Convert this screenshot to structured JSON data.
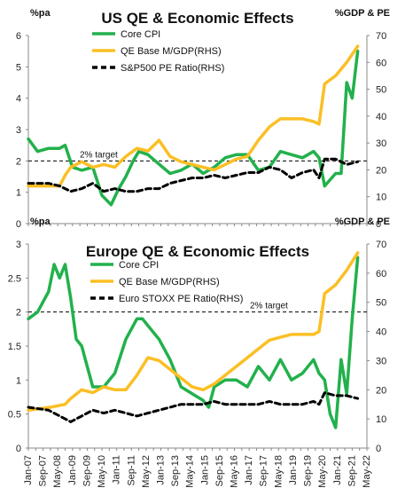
{
  "chart_data": [
    {
      "type": "line",
      "title": "US QE & Economic Effects",
      "left_unit": "%pa",
      "right_unit": "%GDP & PE",
      "x_start": "2007-01",
      "x_end": "2022-05",
      "ylim": [
        0,
        6
      ],
      "y_ticks": [
        0,
        1,
        2,
        3,
        4,
        5,
        6
      ],
      "y2lim": [
        0,
        70
      ],
      "y2_ticks": [
        0,
        10,
        20,
        30,
        40,
        50,
        60,
        70
      ],
      "grid": false,
      "legend_position": "top-center",
      "target": {
        "value": 2,
        "label": "2% target"
      },
      "series": [
        {
          "name": "Core CPI",
          "axis": "left",
          "color": "#22b14c",
          "style": "solid",
          "x": [
            "2007-01",
            "2007-06",
            "2007-12",
            "2008-06",
            "2008-09",
            "2009-01",
            "2009-06",
            "2009-12",
            "2010-05",
            "2010-10",
            "2011-02",
            "2011-06",
            "2011-10",
            "2012-01",
            "2012-06",
            "2012-12",
            "2013-06",
            "2013-12",
            "2014-06",
            "2014-12",
            "2015-06",
            "2015-12",
            "2016-06",
            "2016-12",
            "2017-06",
            "2017-12",
            "2018-06",
            "2018-12",
            "2019-06",
            "2019-12",
            "2020-03",
            "2020-06",
            "2020-12",
            "2021-03",
            "2021-06",
            "2021-09",
            "2021-12"
          ],
          "y": [
            2.7,
            2.3,
            2.4,
            2.4,
            2.5,
            1.8,
            1.7,
            1.8,
            0.9,
            0.6,
            1.1,
            1.5,
            2.0,
            2.3,
            2.2,
            1.9,
            1.6,
            1.7,
            1.9,
            1.6,
            1.8,
            2.1,
            2.2,
            2.2,
            1.7,
            1.8,
            2.3,
            2.2,
            2.1,
            2.3,
            2.1,
            1.2,
            1.6,
            1.6,
            4.5,
            4.0,
            5.5
          ]
        },
        {
          "name": "QE Base M/GDP(RHS)",
          "axis": "right",
          "color": "#fbbf25",
          "style": "solid",
          "x": [
            "2007-01",
            "2008-06",
            "2008-09",
            "2008-12",
            "2009-06",
            "2009-12",
            "2010-06",
            "2010-12",
            "2011-06",
            "2011-12",
            "2012-06",
            "2012-12",
            "2013-06",
            "2013-12",
            "2014-06",
            "2014-12",
            "2015-06",
            "2015-12",
            "2016-06",
            "2016-12",
            "2017-06",
            "2017-12",
            "2018-06",
            "2018-12",
            "2019-06",
            "2019-12",
            "2020-03",
            "2020-06",
            "2020-12",
            "2021-06",
            "2021-12"
          ],
          "y": [
            14,
            14,
            18,
            21,
            23,
            21,
            22,
            21,
            25,
            28,
            27,
            31,
            25,
            23,
            22,
            21,
            20,
            22,
            24,
            25,
            31,
            36,
            39,
            39,
            39,
            38,
            37,
            52,
            55,
            60,
            66
          ]
        },
        {
          "name": "S&P500 PE Ratio(RHS)",
          "axis": "right",
          "color": "#000000",
          "style": "dashed",
          "x": [
            "2007-01",
            "2007-12",
            "2008-06",
            "2008-12",
            "2009-06",
            "2009-12",
            "2010-06",
            "2010-12",
            "2011-06",
            "2011-12",
            "2012-06",
            "2012-12",
            "2013-06",
            "2013-12",
            "2014-06",
            "2014-12",
            "2015-06",
            "2015-12",
            "2016-06",
            "2016-12",
            "2017-06",
            "2017-12",
            "2018-06",
            "2018-12",
            "2019-06",
            "2019-12",
            "2020-03",
            "2020-06",
            "2020-12",
            "2021-06",
            "2021-12"
          ],
          "y": [
            15,
            15,
            14,
            12,
            13,
            15,
            12,
            13,
            12,
            12,
            13,
            13,
            15,
            16,
            17,
            17,
            18,
            17,
            18,
            19,
            19,
            21,
            20,
            17,
            19,
            20,
            17,
            24,
            24,
            22,
            23
          ]
        }
      ],
      "x_tick_labels": [
        "Jan-07",
        "Sep-07",
        "May-08",
        "Jan-09",
        "Sep-09",
        "May-10",
        "Jan-11",
        "Sep-11",
        "May-12",
        "Jan-13",
        "Sep-13",
        "May-14",
        "Jan-15",
        "Sep-15",
        "May-16",
        "Jan-17",
        "Sep-17",
        "May-18",
        "Jan-19",
        "Sep-19",
        "May-20",
        "Jan-21",
        "Sep-21",
        "May-22"
      ]
    },
    {
      "type": "line",
      "title": "Europe QE & Economic Effects",
      "left_unit": "%pa",
      "right_unit": "%GDP & PE",
      "x_start": "2007-01",
      "x_end": "2022-05",
      "ylim": [
        0,
        3
      ],
      "y_ticks": [
        0,
        0.5,
        1,
        1.5,
        2,
        2.5,
        3
      ],
      "y2lim": [
        0,
        70
      ],
      "y2_ticks": [
        0,
        10,
        20,
        30,
        40,
        50,
        60,
        70
      ],
      "grid": false,
      "legend_position": "top-center",
      "target": {
        "value": 2,
        "label": "2% target"
      },
      "series": [
        {
          "name": "Core CPI",
          "axis": "left",
          "color": "#22b14c",
          "style": "solid",
          "x": [
            "2007-01",
            "2007-06",
            "2007-12",
            "2008-03",
            "2008-06",
            "2008-09",
            "2008-12",
            "2009-03",
            "2009-06",
            "2009-09",
            "2009-12",
            "2010-06",
            "2010-12",
            "2011-06",
            "2011-12",
            "2012-03",
            "2012-06",
            "2012-12",
            "2013-06",
            "2013-12",
            "2014-06",
            "2014-12",
            "2015-03",
            "2015-06",
            "2015-12",
            "2016-06",
            "2016-12",
            "2017-06",
            "2017-12",
            "2018-06",
            "2018-12",
            "2019-06",
            "2019-12",
            "2020-03",
            "2020-06",
            "2020-09",
            "2020-12",
            "2021-03",
            "2021-06",
            "2021-09",
            "2021-12"
          ],
          "y": [
            1.9,
            2.0,
            2.3,
            2.7,
            2.5,
            2.7,
            2.2,
            1.6,
            1.5,
            1.2,
            0.9,
            0.9,
            1.1,
            1.6,
            1.9,
            1.9,
            1.8,
            1.6,
            1.3,
            0.9,
            0.8,
            0.7,
            0.6,
            0.9,
            1.0,
            1.0,
            0.9,
            1.2,
            1.0,
            1.3,
            1.0,
            1.1,
            1.3,
            1.1,
            1.0,
            0.5,
            0.3,
            1.3,
            0.8,
            1.9,
            2.8
          ]
        },
        {
          "name": "QE Base M/GDP(RHS)",
          "axis": "right",
          "color": "#fbbf25",
          "style": "solid",
          "x": [
            "2007-01",
            "2008-01",
            "2008-09",
            "2008-12",
            "2009-06",
            "2009-12",
            "2010-06",
            "2010-12",
            "2011-06",
            "2011-12",
            "2012-06",
            "2012-12",
            "2013-06",
            "2013-12",
            "2014-06",
            "2014-12",
            "2015-06",
            "2015-12",
            "2016-06",
            "2016-12",
            "2017-06",
            "2017-12",
            "2018-06",
            "2018-12",
            "2019-06",
            "2019-12",
            "2020-03",
            "2020-06",
            "2020-12",
            "2021-06",
            "2021-12"
          ],
          "y": [
            13,
            14,
            15,
            17,
            20,
            19,
            21,
            20,
            20,
            25,
            31,
            30,
            27,
            24,
            21,
            20,
            22,
            25,
            28,
            31,
            34,
            37,
            38,
            39,
            39,
            39,
            40,
            53,
            56,
            61,
            67
          ]
        },
        {
          "name": "Euro STOXX PE Ratio(RHS)",
          "axis": "right",
          "color": "#000000",
          "style": "dashed",
          "x": [
            "2007-01",
            "2007-12",
            "2008-06",
            "2008-12",
            "2009-06",
            "2009-12",
            "2010-06",
            "2010-12",
            "2011-06",
            "2011-12",
            "2012-06",
            "2012-12",
            "2013-06",
            "2013-12",
            "2014-06",
            "2014-12",
            "2015-06",
            "2015-12",
            "2016-06",
            "2016-12",
            "2017-06",
            "2017-12",
            "2018-06",
            "2018-12",
            "2019-06",
            "2019-12",
            "2020-03",
            "2020-06",
            "2020-12",
            "2021-06",
            "2021-12"
          ],
          "y": [
            14,
            13,
            11,
            9,
            11,
            13,
            12,
            13,
            12,
            11,
            12,
            13,
            14,
            15,
            15,
            15,
            16,
            15,
            15,
            15,
            15,
            16,
            15,
            15,
            15,
            16,
            15,
            19,
            18,
            18,
            17
          ]
        }
      ],
      "x_tick_labels": [
        "Jan-07",
        "Sep-07",
        "May-08",
        "Jan-09",
        "Sep-09",
        "May-10",
        "Jan-11",
        "Sep-11",
        "May-12",
        "Jan-13",
        "Sep-13",
        "May-14",
        "Jan-15",
        "Sep-15",
        "May-16",
        "Jan-17",
        "Sep-17",
        "May-18",
        "Jan-19",
        "Sep-19",
        "May-20",
        "Jan-21",
        "Sep-21",
        "May-22"
      ]
    }
  ]
}
